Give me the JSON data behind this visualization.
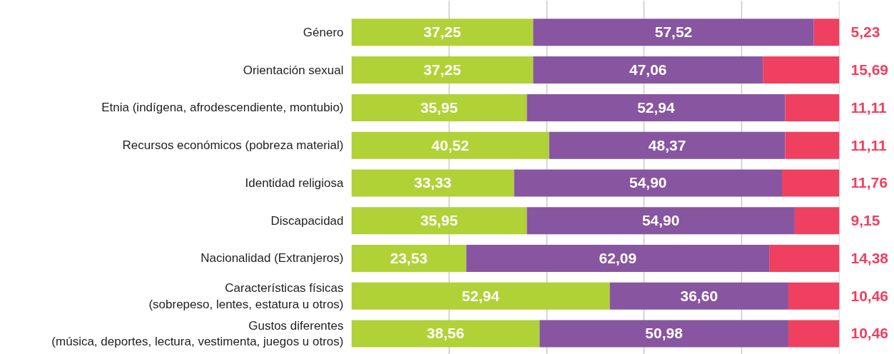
{
  "chart_data": {
    "type": "bar",
    "orientation": "horizontal",
    "stacked": true,
    "categories": [
      "Género",
      "Orientación sexual",
      "Etnia (indígena, afrodescendiente, montubio)",
      "Recursos económicos (pobreza material)",
      "Identidad religiosa",
      "Discapacidad",
      "Nacionalidad (Extranjeros)",
      "Características físicas\n(sobrepeso, lentes, estatura u otros)",
      "Gustos diferentes\n(música, deportes, lectura, vestimenta, juegos u otros)"
    ],
    "series": [
      {
        "color": "#b0d236",
        "values": [
          37.25,
          37.25,
          35.95,
          40.52,
          33.33,
          35.95,
          23.53,
          52.94,
          38.56
        ],
        "value_labels": [
          "37,25",
          "37,25",
          "35,95",
          "40,52",
          "33,33",
          "35,95",
          "23,53",
          "52,94",
          "38,56"
        ]
      },
      {
        "color": "#8855a0",
        "values": [
          57.52,
          47.06,
          52.94,
          48.37,
          54.9,
          54.9,
          62.09,
          36.6,
          50.98
        ],
        "value_labels": [
          "57,52",
          "47,06",
          "52,94",
          "48,37",
          "54,90",
          "54,90",
          "62,09",
          "36,60",
          "50,98"
        ]
      },
      {
        "color": "#ef4060",
        "values": [
          5.23,
          15.69,
          11.11,
          11.11,
          11.76,
          9.15,
          14.38,
          10.46,
          10.46
        ],
        "value_labels": [
          "5,23",
          "15,69",
          "11,11",
          "11,11",
          "11,76",
          "9,15",
          "14,38",
          "10,46",
          "10,46"
        ]
      }
    ],
    "tick_labels": "y",
    "grid": "x"
  }
}
